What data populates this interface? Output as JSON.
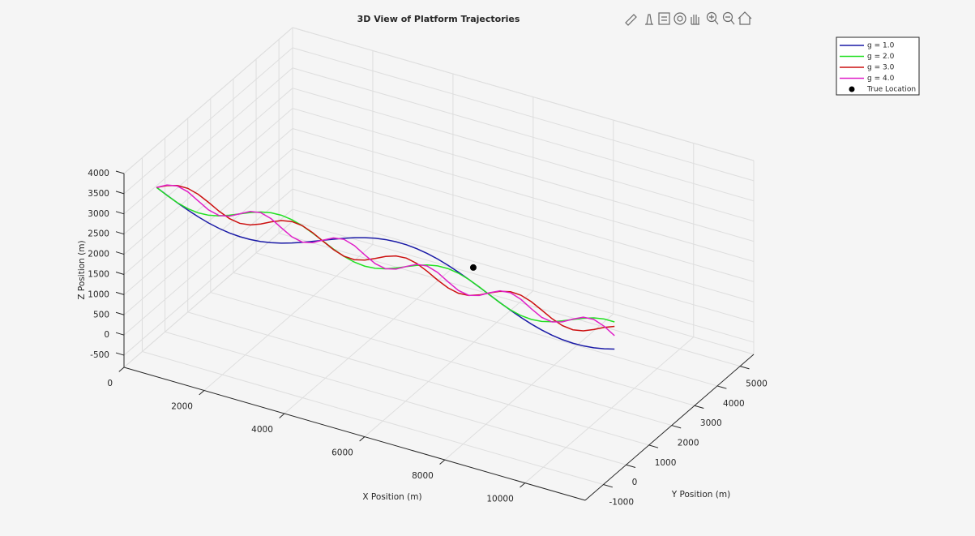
{
  "chart_data": {
    "type": "line3d",
    "title": "3D View of Platform Trajectories",
    "xlabel": "X Position (m)",
    "ylabel": "Y Position (m)",
    "zlabel": "Z Position (m)",
    "xlim": [
      0,
      11500
    ],
    "ylim": [
      -1800,
      5600
    ],
    "zlim": [
      -800,
      4000
    ],
    "xticks": [
      0,
      2000,
      4000,
      6000,
      8000,
      10000
    ],
    "yticks": [
      -1000,
      0,
      1000,
      2000,
      3000,
      4000,
      5000
    ],
    "zticks": [
      -500,
      0,
      500,
      1000,
      1500,
      2000,
      2500,
      3000,
      3500,
      4000
    ],
    "grid": true,
    "legend": "northeast",
    "x": [
      500,
      730,
      960,
      1190,
      1420,
      1650,
      1880,
      2110,
      2340,
      2570,
      2800,
      3030,
      3260,
      3490,
      3720,
      3950,
      4180,
      4410,
      4640,
      4870,
      5100,
      5330,
      5560,
      5790,
      6020,
      6250,
      6480,
      6710,
      6940,
      7170,
      7400,
      7630,
      7860,
      8090,
      8320,
      8550,
      8780,
      9010,
      9240,
      9470,
      9700,
      9930,
      10160,
      10390,
      10620
    ],
    "y": [
      -1250,
      -1198,
      -1146,
      -1094,
      -1042,
      -990,
      -938,
      -886,
      -834,
      -782,
      -730,
      -678,
      -626,
      -574,
      -522,
      -470,
      -418,
      -366,
      -314,
      -262,
      -210,
      -158,
      -106,
      -54,
      -2,
      50,
      102,
      154,
      206,
      258,
      310,
      362,
      414,
      466,
      518,
      570,
      622,
      674,
      726,
      778,
      830,
      882,
      934,
      986,
      1038
    ],
    "series": [
      {
        "name": "g = 1.0",
        "color": "#1a1aa6",
        "z": [
          3530,
          3378,
          3230,
          3091,
          2964,
          2852,
          2759,
          2686,
          2634,
          2604,
          2595,
          2607,
          2636,
          2680,
          2736,
          2801,
          2869,
          2936,
          3000,
          3054,
          3095,
          3122,
          3129,
          3116,
          3082,
          3025,
          2948,
          2851,
          2736,
          2606,
          2465,
          2316,
          2165,
          2012,
          1866,
          1729,
          1605,
          1497,
          1407,
          1338,
          1291,
          1265,
          1260,
          1275,
          1308
        ]
      },
      {
        "name": "g = 2.0",
        "color": "#22e022",
        "z": [
          3530,
          3372,
          3233,
          3126,
          3062,
          3044,
          3069,
          3126,
          3200,
          3273,
          3327,
          3348,
          3326,
          3257,
          3147,
          3005,
          2847,
          2690,
          2553,
          2450,
          2390,
          2377,
          2406,
          2465,
          2540,
          2611,
          2663,
          2680,
          2653,
          2580,
          2466,
          2322,
          2163,
          2007,
          1873,
          1774,
          1719,
          1710,
          1742,
          1804,
          1879,
          1950,
          1999,
          2012,
          1980
        ]
      },
      {
        "name": "g = 3.0",
        "color": "#cc1010",
        "z": [
          3530,
          3617,
          3659,
          3629,
          3522,
          3361,
          3185,
          3041,
          2964,
          2965,
          3030,
          3122,
          3196,
          3211,
          3150,
          3017,
          2844,
          2677,
          2556,
          2510,
          2540,
          2621,
          2711,
          2765,
          2751,
          2659,
          2505,
          2329,
          2176,
          2083,
          2069,
          2123,
          2213,
          2294,
          2324,
          2278,
          2158,
          1990,
          1817,
          1685,
          1623,
          1638,
          1711,
          1804,
          1869
        ]
      },
      {
        "name": "g = 4.0",
        "color": "#e020c8",
        "z": [
          3530,
          3630,
          3646,
          3543,
          3358,
          3175,
          3078,
          3100,
          3202,
          3299,
          3310,
          3202,
          3014,
          2834,
          2742,
          2769,
          2874,
          2969,
          2973,
          2860,
          2670,
          2493,
          2407,
          2439,
          2545,
          2638,
          2636,
          2517,
          2327,
          2152,
          2072,
          2110,
          2217,
          2306,
          2299,
          2175,
          1983,
          1811,
          1737,
          1780,
          1889,
          1975,
          1962,
          1833,
          1639
        ]
      }
    ],
    "points": [
      {
        "name": "True Location",
        "color": "#000000",
        "x": 7500,
        "y": 330,
        "z": 2780
      }
    ]
  }
}
